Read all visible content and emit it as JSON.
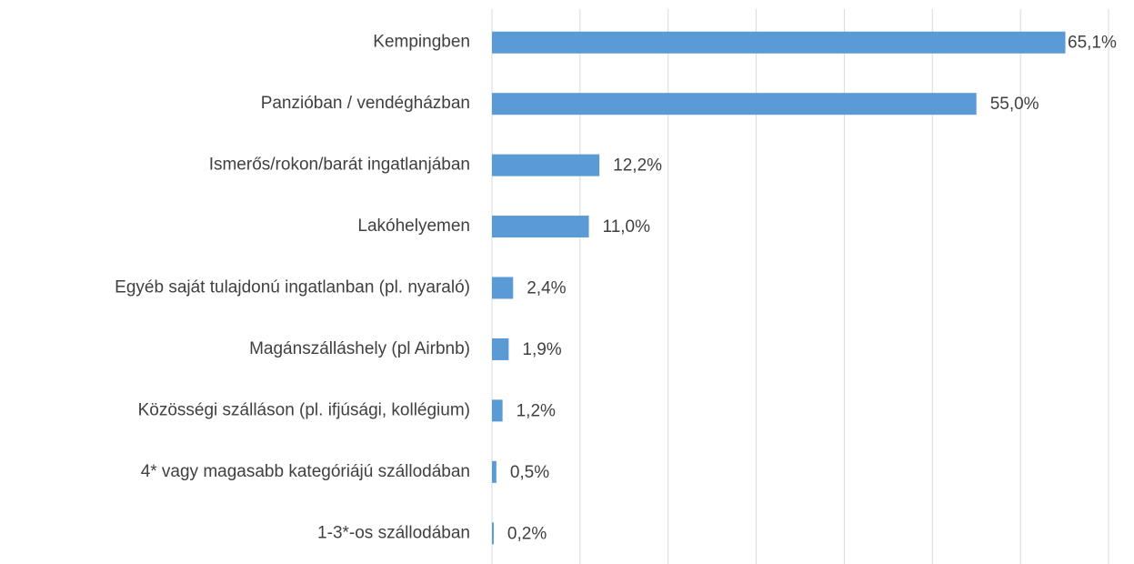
{
  "chart_data": {
    "type": "bar",
    "orientation": "horizontal",
    "categories": [
      "Kempingben",
      "Panzióban / vendégházban",
      "Ismerős/rokon/barát ingatlanjában",
      "Lakóhelyemen",
      "Egyéb saját tulajdonú ingatlanban (pl. nyaraló)",
      "Magánszálláshely (pl Airbnb)",
      "Közösségi szálláson (pl. ifjúsági, kollégium)",
      "4* vagy magasabb kategóriájú szállodában",
      "1-3*-os szállodában"
    ],
    "values": [
      65.1,
      55.0,
      12.2,
      11.0,
      2.4,
      1.9,
      1.2,
      0.5,
      0.2
    ],
    "value_labels": [
      "65,1%",
      "55,0%",
      "12,2%",
      "11,0%",
      "2,4%",
      "1,9%",
      "1,2%",
      "0,5%",
      "0,2%"
    ],
    "color": "#5b9bd5",
    "xlim": [
      0,
      70
    ],
    "xticks": [
      0,
      10,
      20,
      30,
      40,
      50,
      60,
      70
    ],
    "grid": true
  }
}
